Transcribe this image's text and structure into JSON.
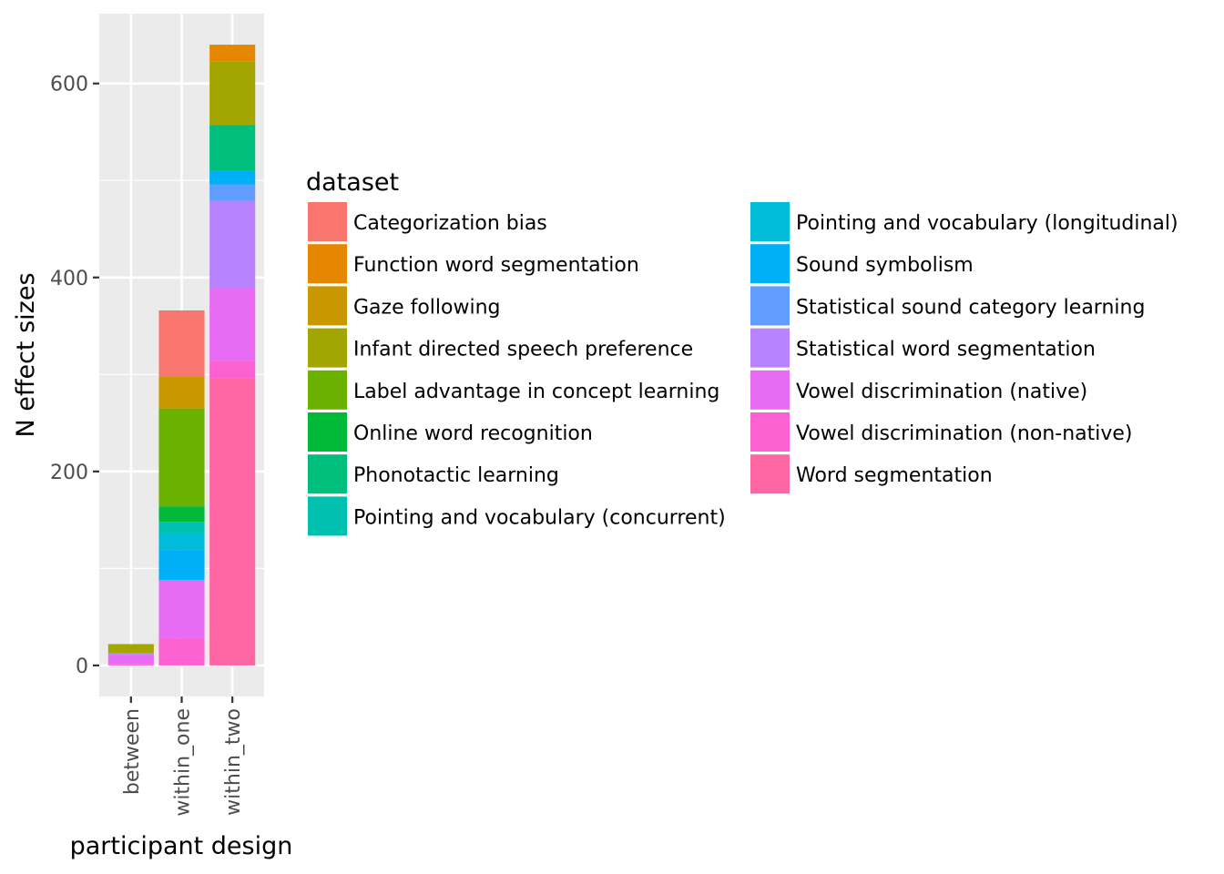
{
  "chart_data": {
    "type": "bar",
    "stacked": true,
    "title": "",
    "xlabel": "participant design",
    "ylabel": "N effect sizes",
    "categories": [
      "between",
      "within_one",
      "within_two"
    ],
    "ylim": [
      -32,
      672
    ],
    "yticks": [
      0,
      200,
      400,
      600
    ],
    "grid": true,
    "legend": {
      "title": "dataset",
      "placement": "right",
      "columns": 2
    },
    "series": [
      {
        "name": "Categorization bias",
        "color": "#F8766D",
        "values": [
          0,
          68,
          0
        ]
      },
      {
        "name": "Function word segmentation",
        "color": "#E58700",
        "values": [
          0,
          0,
          17
        ]
      },
      {
        "name": "Gaze following",
        "color": "#C99800",
        "values": [
          0,
          33,
          0
        ]
      },
      {
        "name": "Infant directed speech preference",
        "color": "#A3A500",
        "values": [
          9,
          0,
          66
        ]
      },
      {
        "name": "Label advantage in concept learning",
        "color": "#6BB100",
        "values": [
          0,
          101,
          0
        ]
      },
      {
        "name": "Online word recognition",
        "color": "#00BA38",
        "values": [
          0,
          16,
          0
        ]
      },
      {
        "name": "Phonotactic learning",
        "color": "#00BF7D",
        "values": [
          0,
          0,
          47
        ]
      },
      {
        "name": "Pointing and vocabulary (concurrent)",
        "color": "#00C0AF",
        "values": [
          0,
          12,
          0
        ]
      },
      {
        "name": "Pointing and vocabulary (longitudinal)",
        "color": "#00BCD8",
        "values": [
          0,
          17,
          0
        ]
      },
      {
        "name": "Sound symbolism",
        "color": "#00B0F6",
        "values": [
          0,
          31,
          14
        ]
      },
      {
        "name": "Statistical sound category learning",
        "color": "#619CFF",
        "values": [
          0,
          0,
          17
        ]
      },
      {
        "name": "Statistical word segmentation",
        "color": "#B983FF",
        "values": [
          2,
          0,
          90
        ]
      },
      {
        "name": "Vowel discrimination (native)",
        "color": "#E76BF3",
        "values": [
          10,
          60,
          75
        ]
      },
      {
        "name": "Vowel discrimination (non-native)",
        "color": "#FD61D1",
        "values": [
          1,
          28,
          18
        ]
      },
      {
        "name": "Word segmentation",
        "color": "#FF67A4",
        "values": [
          0,
          0,
          296
        ]
      }
    ]
  }
}
